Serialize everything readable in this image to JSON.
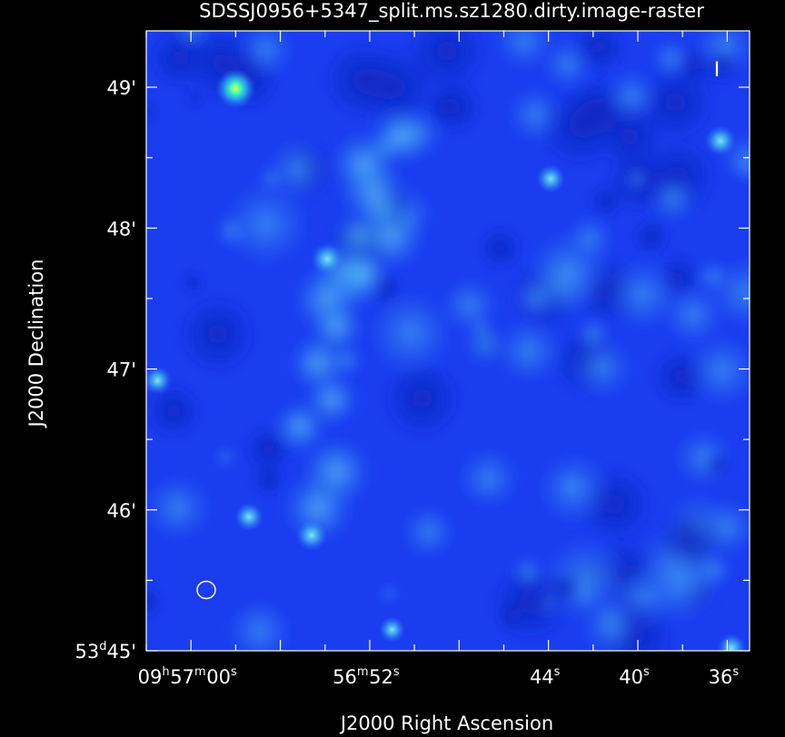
{
  "title": "SDSSJ0956+5347_split.ms.sz1280.dirty.image-raster",
  "xlabel": "J2000 Right Ascension",
  "ylabel": "J2000 Declination",
  "stokes_label": "I",
  "dec_ticks": [
    {
      "deg": "",
      "min": "49",
      "sec": "",
      "value_arcmin": 49
    },
    {
      "deg": "",
      "min": "48",
      "sec": "",
      "value_arcmin": 48
    },
    {
      "deg": "",
      "min": "47",
      "sec": "",
      "value_arcmin": 47
    },
    {
      "deg": "",
      "min": "46",
      "sec": "",
      "value_arcmin": 46
    },
    {
      "deg": "53",
      "min": "45",
      "sec": "",
      "value_arcmin": 45
    }
  ],
  "ra_ticks": [
    {
      "h": "09",
      "m": "57",
      "s": "00",
      "value_s": 60
    },
    {
      "h": "",
      "m": "56",
      "s": "52",
      "value_s": 52
    },
    {
      "h": "",
      "m": "",
      "s": "44",
      "value_s": 44
    },
    {
      "h": "",
      "m": "",
      "s": "40",
      "value_s": 40
    },
    {
      "h": "",
      "m": "",
      "s": "36",
      "value_s": 36
    }
  ],
  "ra_range_s": [
    62,
    35
  ],
  "dec_range_arcmin": [
    45,
    49.4
  ],
  "colors": {
    "background": "#000000",
    "map_base": "#1a3df0",
    "axis": "#ffffff"
  },
  "sources": [
    {
      "ra_s": 58.0,
      "dec_arcmin": 48.99,
      "strength": 1.0
    },
    {
      "ra_s": 36.3,
      "dec_arcmin": 48.62,
      "strength": 0.65
    },
    {
      "ra_s": 43.9,
      "dec_arcmin": 48.35,
      "strength": 0.55
    },
    {
      "ra_s": 53.9,
      "dec_arcmin": 47.78,
      "strength": 0.7
    },
    {
      "ra_s": 61.5,
      "dec_arcmin": 46.92,
      "strength": 0.55
    },
    {
      "ra_s": 57.4,
      "dec_arcmin": 45.95,
      "strength": 0.55
    },
    {
      "ra_s": 54.6,
      "dec_arcmin": 45.82,
      "strength": 0.65
    },
    {
      "ra_s": 51.0,
      "dec_arcmin": 45.15,
      "strength": 0.45
    },
    {
      "ra_s": 35.8,
      "dec_arcmin": 45.02,
      "strength": 0.55
    }
  ]
}
